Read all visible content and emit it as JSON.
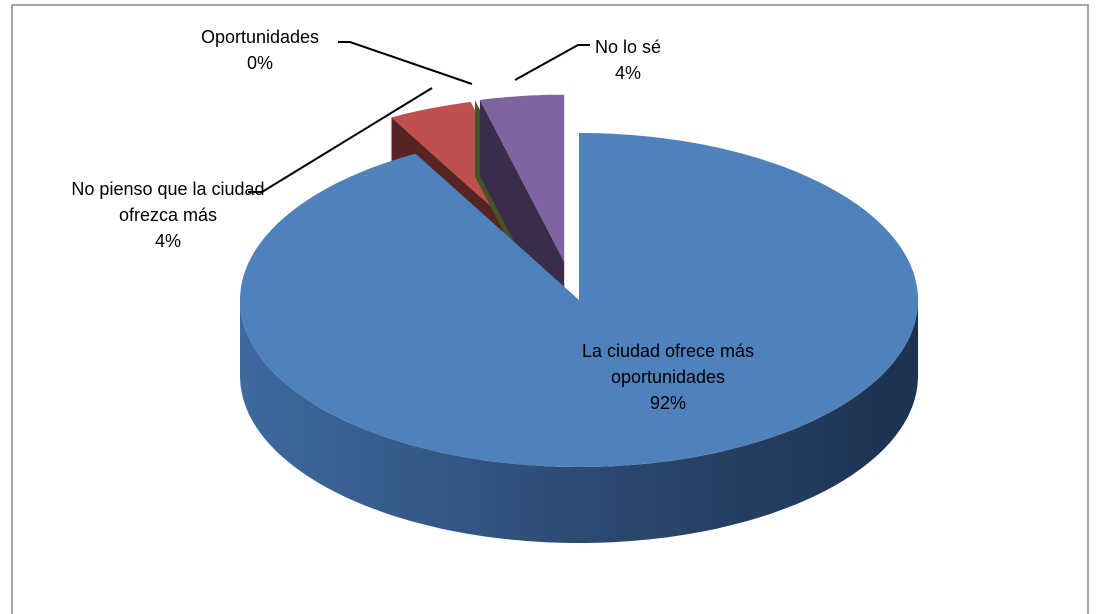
{
  "chart_data": {
    "type": "pie3d",
    "categories": [
      "La ciudad ofrece más oportunidades",
      "No pienso que la ciudad ofrezca más",
      "Oportunidades",
      "No lo sé"
    ],
    "values": [
      92,
      4,
      0,
      4
    ],
    "value_labels": [
      "92%",
      "4%",
      "0%",
      "4%"
    ],
    "colors": [
      "#4f81bd",
      "#c0504d",
      "#9bbb59",
      "#8064a2"
    ]
  }
}
